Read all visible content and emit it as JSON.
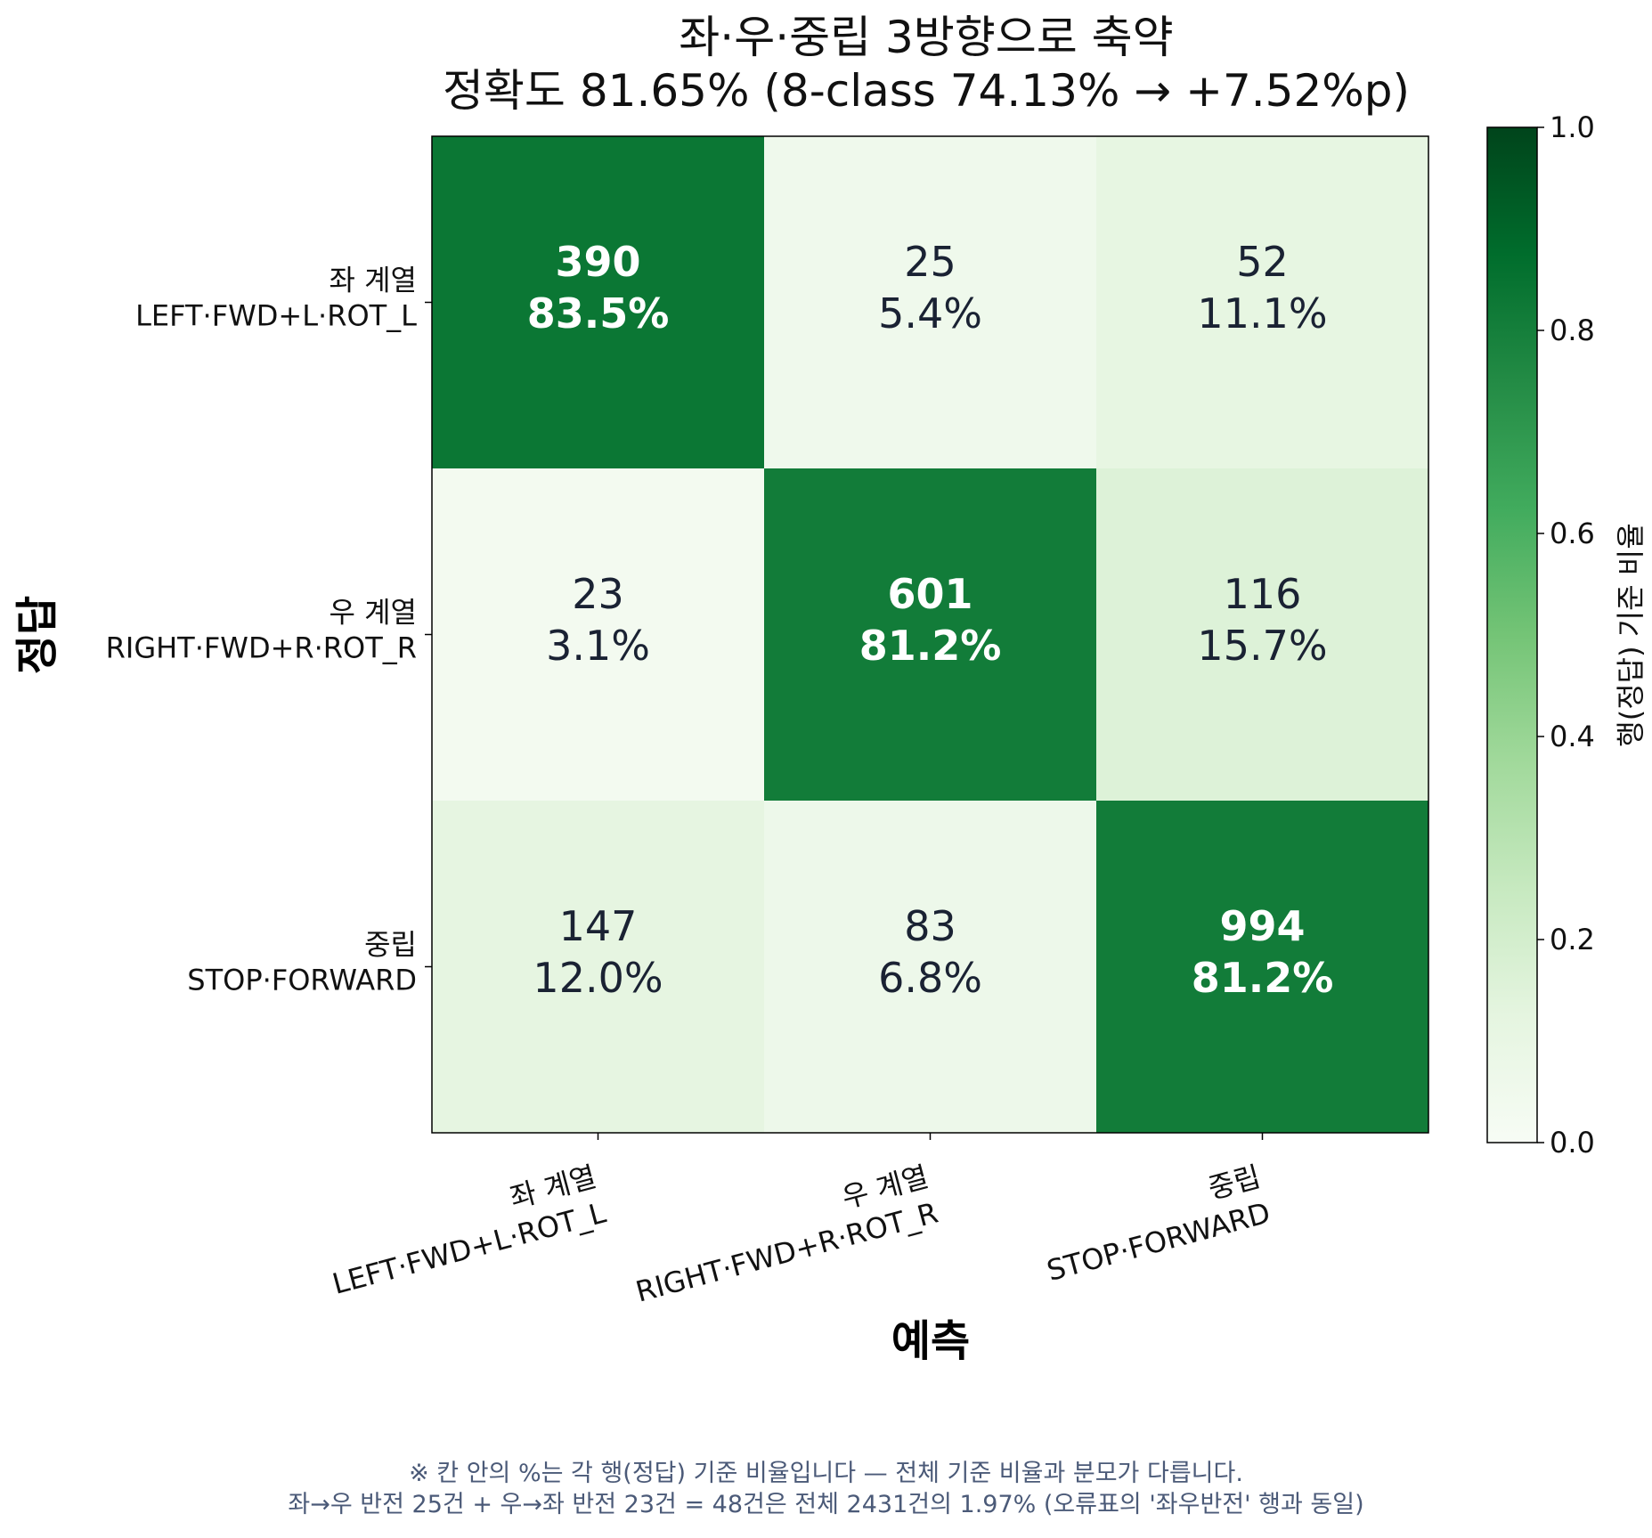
{
  "chart_data": {
    "type": "heatmap",
    "title": "좌·우·중립 3방향으로 축약",
    "subtitle": "정확도 81.65%  (8-class 74.13% → +7.52%p)",
    "xlabel": "예측",
    "ylabel": "정답",
    "row_labels": [
      [
        "좌 계열",
        "LEFT·FWD+L·ROT_L"
      ],
      [
        "우 계열",
        "RIGHT·FWD+R·ROT_R"
      ],
      [
        "중립",
        "STOP·FORWARD"
      ]
    ],
    "col_labels": [
      [
        "좌 계열",
        "LEFT·FWD+L·ROT_L"
      ],
      [
        "우 계열",
        "RIGHT·FWD+R·ROT_R"
      ],
      [
        "중립",
        "STOP·FORWARD"
      ]
    ],
    "counts": [
      [
        390,
        25,
        52
      ],
      [
        23,
        601,
        116
      ],
      [
        147,
        83,
        994
      ]
    ],
    "percent_labels": [
      [
        "83.5%",
        "5.4%",
        "11.1%"
      ],
      [
        "3.1%",
        "81.2%",
        "15.7%"
      ],
      [
        "12.0%",
        "6.8%",
        "81.2%"
      ]
    ],
    "row_ratios": [
      [
        0.835,
        0.054,
        0.111
      ],
      [
        0.031,
        0.812,
        0.157
      ],
      [
        0.12,
        0.068,
        0.812
      ]
    ],
    "colorbar": {
      "label": "행(정답) 기준 비율",
      "range": [
        0.0,
        1.0
      ],
      "ticks": [
        "0.0",
        "0.2",
        "0.4",
        "0.6",
        "0.8",
        "1.0"
      ],
      "colormap": "Greens"
    }
  },
  "footnote": [
    "※ 칸 안의 %는 각 행(정답) 기준 비율입니다 — 전체 기준 비율과 분모가 다릅니다.",
    "좌→우 반전 25건 + 우→좌 반전 23건 = 48건은 전체 2431건의 1.97% (오류표의 '좌우반전' 행과 동일)"
  ]
}
